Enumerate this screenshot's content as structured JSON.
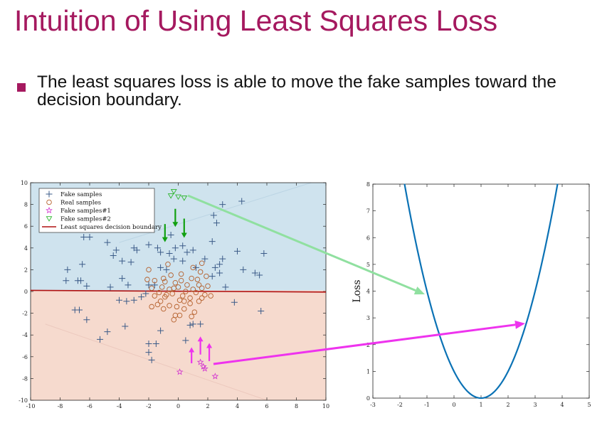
{
  "slide": {
    "title": "Intuition of Using Least Squares Loss",
    "bullet": "The least squares loss is able to move the fake samples toward the decision boundary."
  },
  "colors": {
    "title": "#a5195f",
    "region_top": "#cfe3ee",
    "region_bottom": "#f6dace",
    "fake": "#3b5b88",
    "real": "#b5602c",
    "fake1": "#d233d0",
    "fake2": "#2cb52c",
    "boundary": "#b01111",
    "loss_curve": "#0b72b5",
    "green_arrow": "#90e0a0",
    "magenta_arrow": "#ee33ee",
    "down_arrow": "#11a011"
  },
  "chart_data": [
    {
      "type": "scatter",
      "xlim": [
        -10,
        10
      ],
      "ylim": [
        -10,
        10
      ],
      "xticks": [
        -10,
        -8,
        -6,
        -4,
        -2,
        0,
        2,
        4,
        6,
        8,
        10
      ],
      "yticks": [
        -10,
        -8,
        -6,
        -4,
        -2,
        0,
        2,
        4,
        6,
        8,
        10
      ],
      "legend_position": "top-left",
      "legend": [
        "Fake samples",
        "Real samples",
        "Fake samples#1",
        "Fake samples#2",
        "Least squares decision boundary"
      ],
      "boundary_y": [
        0.1,
        -0.05
      ],
      "series": [
        {
          "name": "Fake samples",
          "marker": "plus",
          "points": [
            [
              -7.5,
              2
            ],
            [
              -7.6,
              1
            ],
            [
              -6.5,
              2.5
            ],
            [
              -6.2,
              0.5
            ],
            [
              -6.8,
              1
            ],
            [
              -6.6,
              1
            ],
            [
              -6,
              5
            ],
            [
              -6.4,
              5
            ],
            [
              -4.8,
              4.5
            ],
            [
              -4.4,
              3.3
            ],
            [
              -4.2,
              3.8
            ],
            [
              -3.8,
              2.8
            ],
            [
              -3.2,
              2.7
            ],
            [
              -3,
              4
            ],
            [
              -2.8,
              3.8
            ],
            [
              -2,
              4.3
            ],
            [
              -1.4,
              4
            ],
            [
              -1.2,
              3.6
            ],
            [
              -0.6,
              3.5
            ],
            [
              -0.5,
              5.2
            ],
            [
              -0.3,
              3
            ],
            [
              -0.2,
              4
            ],
            [
              0.3,
              4.2
            ],
            [
              0.6,
              3.6
            ],
            [
              1,
              3.8
            ],
            [
              -1.2,
              2.2
            ],
            [
              -0.8,
              2
            ],
            [
              -2,
              0.6
            ],
            [
              -1.6,
              0.6
            ],
            [
              -2.2,
              -0.2
            ],
            [
              -2.5,
              -0.5
            ],
            [
              -3.8,
              1.2
            ],
            [
              -3.4,
              0.6
            ],
            [
              -4.6,
              0.4
            ],
            [
              -4,
              -0.8
            ],
            [
              -3.5,
              -0.9
            ],
            [
              -3,
              -0.8
            ],
            [
              -7,
              -1.7
            ],
            [
              -6.7,
              -1.7
            ],
            [
              -6.2,
              -2.6
            ],
            [
              -5.3,
              -4.4
            ],
            [
              -4.8,
              -3.7
            ],
            [
              -3.6,
              -3.2
            ],
            [
              -1.2,
              -3.6
            ],
            [
              -2,
              -5.6
            ],
            [
              -2,
              -4.8
            ],
            [
              -1.5,
              -4.8
            ],
            [
              -1.8,
              -6.3
            ],
            [
              0.5,
              -4.5
            ],
            [
              0.8,
              -3.1
            ],
            [
              1,
              -3
            ],
            [
              1.5,
              -3
            ],
            [
              2.3,
              1.4
            ],
            [
              2.5,
              2.2
            ],
            [
              2.8,
              2.5
            ],
            [
              2.8,
              1.7
            ],
            [
              3,
              3
            ],
            [
              3.2,
              0.4
            ],
            [
              3.8,
              -1
            ],
            [
              4,
              3.7
            ],
            [
              4.4,
              2
            ],
            [
              5.2,
              1.7
            ],
            [
              5.5,
              1.5
            ],
            [
              5.8,
              3.5
            ],
            [
              5.6,
              -1.8
            ],
            [
              3,
              8
            ],
            [
              4.3,
              8.3
            ],
            [
              2.6,
              6.3
            ],
            [
              2.4,
              7
            ],
            [
              2.3,
              4.6
            ],
            [
              0.3,
              2.8
            ],
            [
              1.2,
              2.2
            ],
            [
              1.8,
              3
            ]
          ]
        },
        {
          "name": "Real samples",
          "marker": "circle",
          "points": [
            [
              -2,
              2
            ],
            [
              -1.6,
              1
            ],
            [
              -2.1,
              1.1
            ],
            [
              -1.1,
              0.4
            ],
            [
              -1.3,
              -0.1
            ],
            [
              -1.6,
              -0.4
            ],
            [
              -0.9,
              -0.5
            ],
            [
              -0.6,
              0.2
            ],
            [
              -0.4,
              -0.2
            ],
            [
              0,
              0.4
            ],
            [
              0.2,
              1
            ],
            [
              0.3,
              -0.4
            ],
            [
              0.6,
              0.6
            ],
            [
              0.8,
              -0.6
            ],
            [
              1,
              0.2
            ],
            [
              1.2,
              -0.1
            ],
            [
              1.4,
              0.6
            ],
            [
              1.6,
              0.3
            ],
            [
              1.8,
              -0.3
            ],
            [
              2,
              0.5
            ],
            [
              1.9,
              1.4
            ],
            [
              1.5,
              1.8
            ],
            [
              1.6,
              2.6
            ],
            [
              1,
              2.2
            ],
            [
              -0.5,
              1.5
            ],
            [
              -0.2,
              0.8
            ],
            [
              -0.7,
              2.5
            ],
            [
              -1,
              1.2
            ],
            [
              -1.8,
              -1.4
            ],
            [
              -1.4,
              -1.2
            ],
            [
              -1,
              -1.6
            ],
            [
              -0.6,
              -1.3
            ],
            [
              -0.1,
              -1.4
            ],
            [
              0.4,
              -1.6
            ],
            [
              0.8,
              -1.1
            ],
            [
              1.1,
              -1.9
            ],
            [
              -0.2,
              -2.2
            ],
            [
              -0.3,
              -2.6
            ],
            [
              0.1,
              -2.2
            ],
            [
              0.9,
              -2.3
            ],
            [
              0.4,
              -0.9
            ],
            [
              -0.9,
              0.9
            ],
            [
              0.1,
              -0.8
            ],
            [
              -1.2,
              -0.9
            ],
            [
              1.4,
              -0.9
            ],
            [
              -0.3,
              0.3
            ],
            [
              0.5,
              0
            ],
            [
              1.6,
              -0.6
            ],
            [
              2.2,
              -0.4
            ],
            [
              -1.8,
              0.3
            ],
            [
              -0.8,
              -0.3
            ],
            [
              0.9,
              1.2
            ],
            [
              1.3,
              1.1
            ],
            [
              0.2,
              1.6
            ]
          ]
        },
        {
          "name": "Fake samples#1",
          "marker": "star",
          "points": [
            [
              0.1,
              -7.4
            ],
            [
              1.8,
              -7.1
            ],
            [
              2.5,
              -7.8
            ],
            [
              1.5,
              -6.5
            ],
            [
              1.7,
              -6.9
            ]
          ]
        },
        {
          "name": "Fake samples#2",
          "marker": "triangle-down",
          "points": [
            [
              -0.5,
              8.8
            ],
            [
              -0.3,
              9.2
            ],
            [
              0,
              8.7
            ],
            [
              0.4,
              8.6
            ]
          ]
        }
      ]
    },
    {
      "type": "line",
      "ylabel": "Loss",
      "xlim": [
        -3,
        5
      ],
      "ylim": [
        0,
        8
      ],
      "xticks": [
        -3,
        -2,
        -1,
        0,
        1,
        2,
        3,
        4,
        5
      ],
      "yticks": [
        0,
        1,
        2,
        3,
        4,
        5,
        6,
        7,
        8
      ],
      "function": "(x-1)^2",
      "x_range": [
        -1.83,
        3.83
      ]
    }
  ]
}
